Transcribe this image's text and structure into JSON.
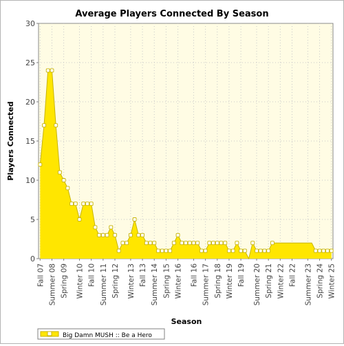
{
  "chart_data": {
    "type": "area",
    "title": "Average Players Connected By Season",
    "xlabel": "Season",
    "ylabel": "Players Connected",
    "ylim": [
      0,
      30
    ],
    "yticks": [
      0,
      5,
      10,
      15,
      20,
      25,
      30
    ],
    "grid": true,
    "legend_position": "bottom-left",
    "colors": {
      "fill": "#ffe600",
      "outline": "#c8b400",
      "marker_fill": "#ffffff",
      "plot_bg": "#fffce4",
      "grid": "#c8c8c8"
    },
    "x_tick_labels": [
      "Fall 07",
      "Summer 08",
      "Spring 09",
      "Winter 10",
      "Fall 10",
      "Summer 11",
      "Spring 12",
      "Winter 13",
      "Fall 13",
      "Summer 14",
      "Spring 15",
      "Winter 16",
      "Fall 16",
      "Summer 17",
      "Spring 18",
      "Winter 19",
      "Fall 19",
      "Summer 20",
      "Spring 21",
      "Winter 22",
      "Fall 22",
      "Summer 23",
      "Spring 24",
      "Winter 25"
    ],
    "series": [
      {
        "name": "Big Damn MUSH :: Be a Hero",
        "values": [
          12,
          17,
          24,
          24,
          17,
          11,
          10,
          9,
          7,
          7,
          5,
          7,
          7,
          7,
          4,
          3,
          3,
          3,
          4,
          3,
          1,
          2,
          2,
          3,
          5,
          3,
          3,
          2,
          2,
          2,
          1,
          1,
          1,
          1,
          2,
          3,
          2,
          2,
          2,
          2,
          2,
          1,
          1,
          2,
          2,
          2,
          2,
          2,
          1,
          1,
          2,
          1,
          1,
          0,
          2,
          1,
          1,
          1,
          1,
          2,
          2,
          2,
          2,
          2,
          2,
          2,
          2,
          2,
          2,
          2,
          1,
          1,
          1,
          1,
          1
        ],
        "markers_present": [
          true,
          true,
          true,
          true,
          true,
          true,
          true,
          true,
          true,
          true,
          true,
          true,
          true,
          true,
          true,
          true,
          true,
          true,
          true,
          true,
          true,
          true,
          true,
          true,
          true,
          true,
          true,
          true,
          true,
          true,
          true,
          true,
          true,
          true,
          true,
          true,
          true,
          true,
          true,
          true,
          true,
          true,
          true,
          true,
          true,
          true,
          true,
          true,
          true,
          true,
          true,
          true,
          true,
          false,
          true,
          true,
          true,
          true,
          true,
          true,
          false,
          false,
          false,
          false,
          false,
          false,
          false,
          false,
          false,
          false,
          true,
          true,
          true,
          true,
          true
        ]
      }
    ]
  }
}
